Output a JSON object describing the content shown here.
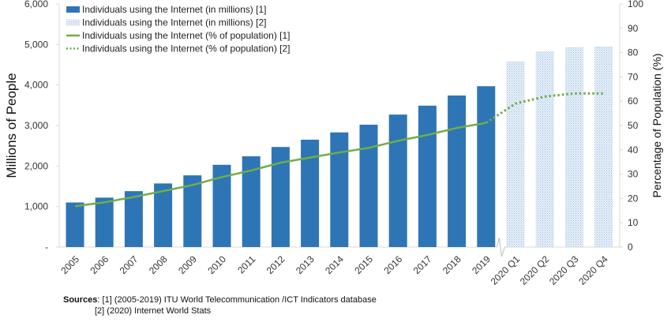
{
  "chart_data": {
    "type": "bar+line",
    "categories": [
      "2005",
      "2006",
      "2007",
      "2008",
      "2009",
      "2010",
      "2011",
      "2012",
      "2013",
      "2014",
      "2015",
      "2016",
      "2017",
      "2018",
      "2019",
      "2020 Q1",
      "2020 Q2",
      "2020 Q3",
      "2020 Q4"
    ],
    "series": [
      {
        "name": "Individuals using the Internet (in millions) [1]",
        "type": "bar",
        "axis": "left",
        "color": "#2e75b6",
        "values": [
          1100,
          1220,
          1380,
          1570,
          1770,
          2030,
          2240,
          2470,
          2650,
          2830,
          3020,
          3270,
          3490,
          3740,
          3970,
          null,
          null,
          null,
          null
        ]
      },
      {
        "name": "Individuals using the Internet (in millions) [2]",
        "type": "bar",
        "axis": "left",
        "color": "#c9dcef",
        "pattern": "dotted",
        "values": [
          null,
          null,
          null,
          null,
          null,
          null,
          null,
          null,
          null,
          null,
          null,
          null,
          null,
          null,
          null,
          4580,
          4830,
          4930,
          4950
        ]
      },
      {
        "name": "Individuals using the Internet (% of population) [1]",
        "type": "line",
        "axis": "right",
        "color": "#70ad47",
        "values": [
          16.8,
          18.4,
          20.6,
          23.0,
          25.5,
          28.8,
          31.5,
          34.7,
          36.8,
          38.9,
          40.8,
          43.7,
          46.1,
          49.0,
          51.1,
          null,
          null,
          null,
          null
        ]
      },
      {
        "name": "Individuals using the Internet (% of population) [2]",
        "type": "line",
        "axis": "right",
        "color": "#70ad47",
        "dash": "dotted",
        "values": [
          null,
          null,
          null,
          null,
          null,
          null,
          null,
          null,
          null,
          null,
          null,
          null,
          null,
          null,
          51.1,
          59.0,
          61.9,
          63.2,
          63.2
        ]
      }
    ],
    "ylabel": "Millions of People",
    "ylabel_right": "Percentage of Population (%)",
    "ylim": [
      0,
      6000
    ],
    "ylim_right": [
      0,
      100
    ],
    "yticks": [
      0,
      1000,
      2000,
      3000,
      4000,
      5000,
      6000
    ],
    "ytick_labels": [
      "-",
      "1,000",
      "2,000",
      "3,000",
      "4,000",
      "5,000",
      "6,000"
    ],
    "yticks_right": [
      0,
      10,
      20,
      30,
      40,
      50,
      60,
      70,
      80,
      90,
      100
    ],
    "grid": false,
    "legend": "top-left",
    "axis_break_after": "2019"
  },
  "sources": {
    "label": "Sources",
    "line1": ": [1] (2005-2019) ITU World Telecommunication /ICT Indicators database",
    "line2": "[2] (2020) Internet World Stats"
  }
}
